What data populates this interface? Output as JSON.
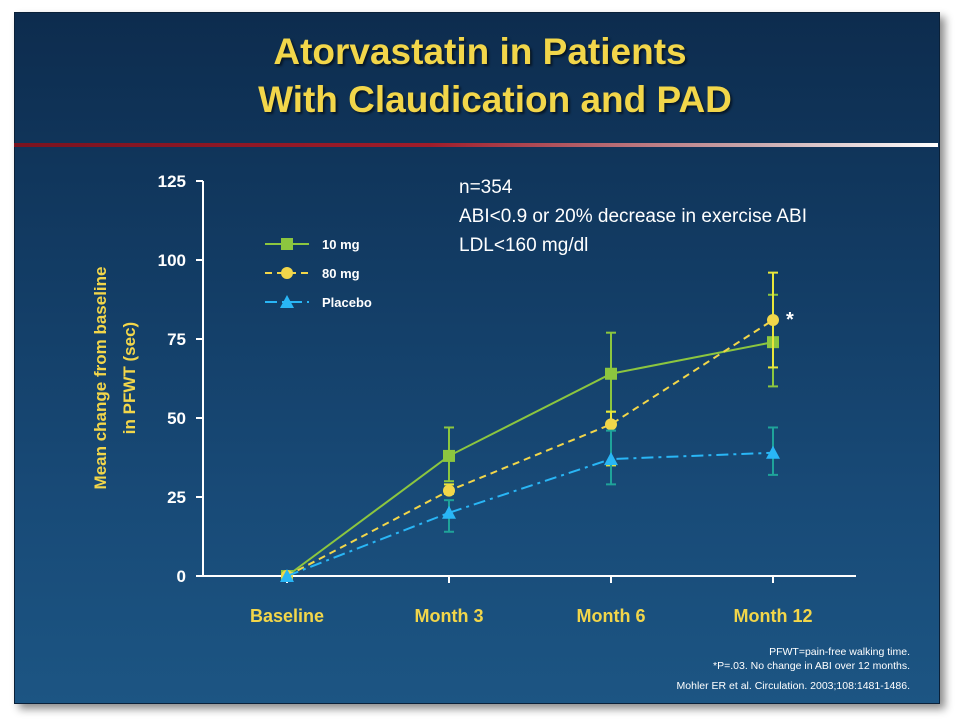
{
  "slide": {
    "title_line1": "Atorvastatin in Patients",
    "title_line2": "With Claudication and PAD",
    "footnote1": "PFWT=pain-free walking time.",
    "footnote2": "*P=.03. No change in ABI over 12 months.",
    "citation": "Mohler ER et al. Circulation. 2003;108:1481-1486."
  },
  "colors": {
    "title": "#f2d64a",
    "series_10mg": "#8cc63f",
    "series_80mg": "#f2d64a",
    "series_placebo": "#29b6f6",
    "errorbar_80mg": "#e8e63a",
    "errorbar_placebo": "#1fa39a"
  },
  "chart_data": {
    "type": "line",
    "categories": [
      "Baseline",
      "Month 3",
      "Month 6",
      "Month 12"
    ],
    "ylabel": "Mean change from baseline in PFWT (sec)",
    "ylabel_lines": [
      "Mean change from baseline",
      "in PFWT (sec)"
    ],
    "ylim": [
      0,
      125
    ],
    "yticks": [
      0,
      25,
      50,
      75,
      100,
      125
    ],
    "legend_position": "top-left",
    "grid": false,
    "annotations": [
      "n=354",
      "ABI<0.9 or 20% decrease in exercise ABI",
      "LDL<160 mg/dl"
    ],
    "significance_marker": "*",
    "series": [
      {
        "name": "10 mg",
        "marker": "square",
        "linestyle": "solid",
        "color": "#8cc63f",
        "values": [
          0,
          38,
          64,
          74
        ],
        "error_upper": [
          null,
          47,
          77,
          89
        ],
        "error_lower": [
          null,
          30,
          52,
          60
        ]
      },
      {
        "name": "80 mg",
        "marker": "circle",
        "linestyle": "dashed",
        "color": "#f2d64a",
        "values": [
          0,
          27,
          48,
          81
        ],
        "error_upper": [
          null,
          29,
          52,
          96
        ],
        "error_lower": [
          null,
          26,
          35,
          66
        ]
      },
      {
        "name": "Placebo",
        "marker": "triangle",
        "linestyle": "dashdot",
        "color": "#29b6f6",
        "values": [
          0,
          20,
          37,
          39
        ],
        "error_upper": [
          null,
          24,
          46,
          47
        ],
        "error_lower": [
          null,
          14,
          29,
          32
        ]
      }
    ]
  }
}
